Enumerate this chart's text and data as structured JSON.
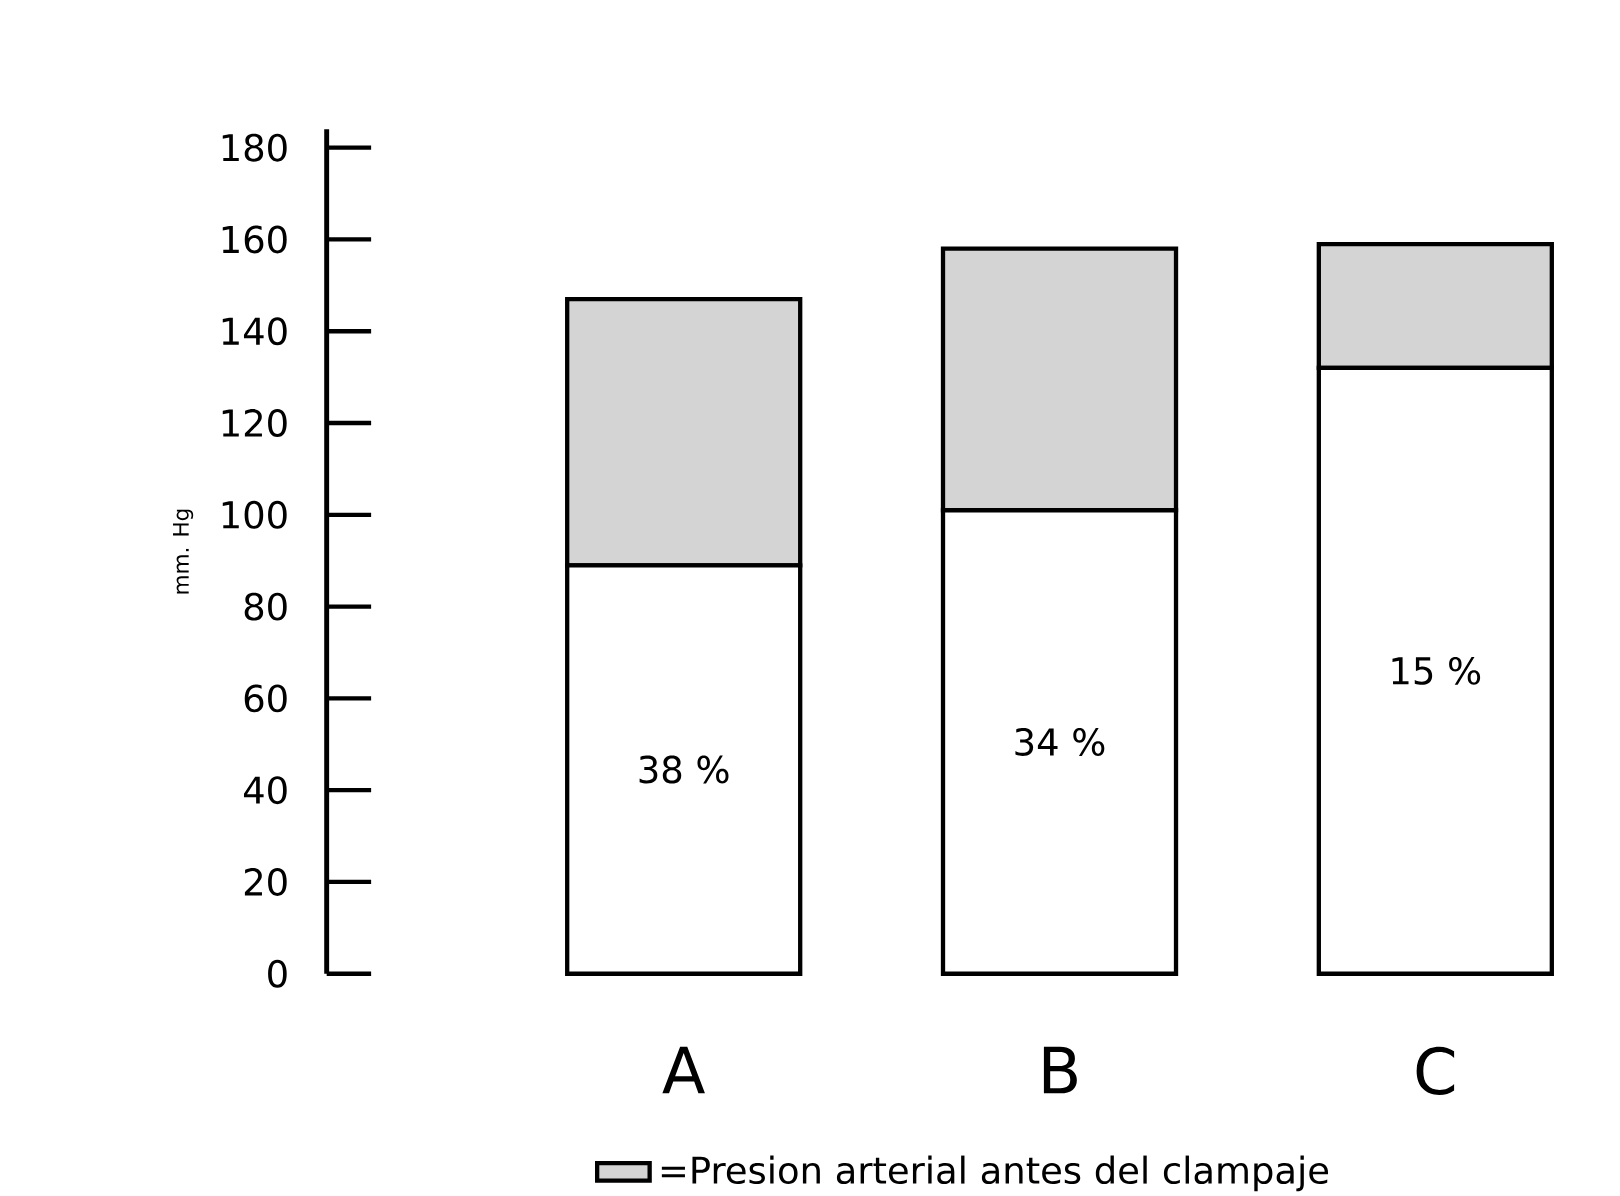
{
  "chart_data": {
    "type": "bar",
    "stacked": true,
    "ylabel": "mm. Hg",
    "categories": [
      "A",
      "B",
      "C"
    ],
    "series": [
      {
        "color": "#ffffff",
        "values": [
          89,
          101,
          132
        ]
      },
      {
        "name": "=Presion arterial antes del clampaje",
        "color": "#d4d4d4",
        "values": [
          58,
          57,
          27
        ]
      }
    ],
    "ylim": [
      0,
      184
    ],
    "yticks": [
      0,
      20,
      40,
      60,
      80,
      100,
      120,
      140,
      160,
      180
    ],
    "legend": "bottom",
    "grid": false,
    "annotations": [
      "38 %",
      "34 %",
      "15 %"
    ]
  }
}
